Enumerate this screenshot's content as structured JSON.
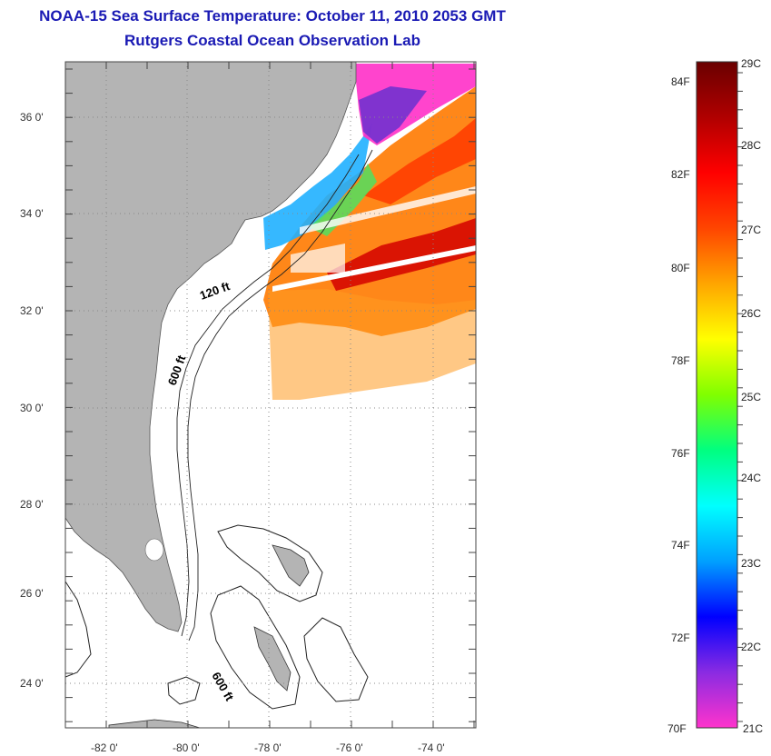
{
  "title": "NOAA-15 Sea Surface Temperature:  October 11, 2010 2053 GMT",
  "subtitle": "Rutgers Coastal Ocean Observation Lab",
  "map": {
    "lon_range": [
      -83,
      -73
    ],
    "lat_range": [
      23,
      37
    ],
    "lon_ticks": [
      "-82 0'",
      "-80 0'",
      "-78 0'",
      "-76 0'",
      "-74 0'"
    ],
    "lat_ticks": [
      "36 0'",
      "34 0'",
      "32 0'",
      "30 0'",
      "28 0'",
      "26 0'",
      "24 0'"
    ],
    "contour_labels": [
      "120 ft",
      "600 ft",
      "600 ft"
    ],
    "land_color": "#b4b4b4"
  },
  "colorbar": {
    "fahrenheit_labels": [
      "84F",
      "82F",
      "80F",
      "78F",
      "76F",
      "74F",
      "72F",
      "70F"
    ],
    "celsius_labels": [
      "29C",
      "28C",
      "27C",
      "26C",
      "25C",
      "24C",
      "23C",
      "22C",
      "21C"
    ],
    "colors": [
      "#ff33cc",
      "#8a2be2",
      "#0000ff",
      "#00a0ff",
      "#00ffff",
      "#00ff80",
      "#80ff00",
      "#ffff00",
      "#ffa500",
      "#ff4500",
      "#ff0000",
      "#b00000",
      "#6a0000"
    ]
  }
}
